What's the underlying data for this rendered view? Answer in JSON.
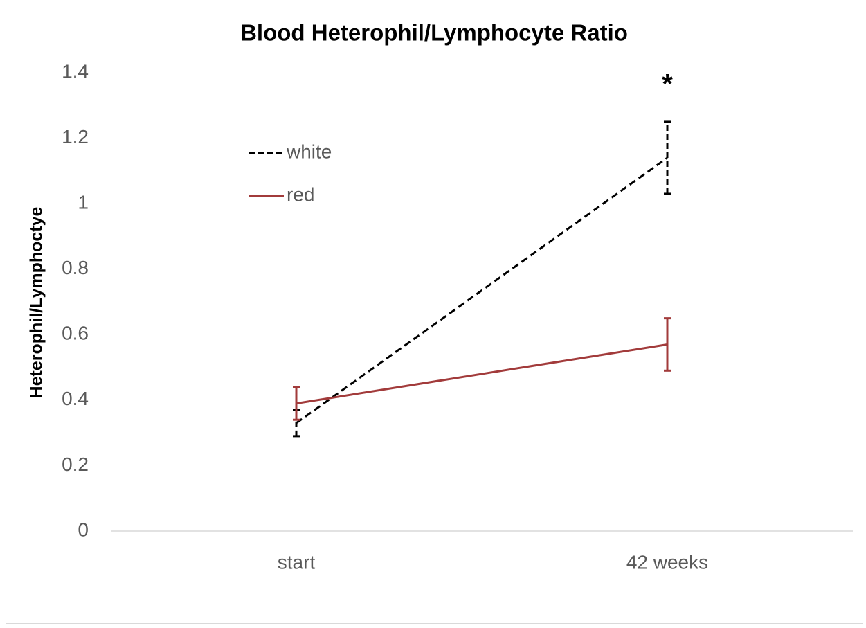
{
  "chart_data": {
    "type": "line",
    "title": "Blood Heterophil/Lymphocyte Ratio",
    "y_label": "Heterophil/Lymphoctye",
    "categories": [
      "start",
      "42 weeks"
    ],
    "series": [
      {
        "name": "white",
        "color": "#000000",
        "linestyle": "dashed",
        "values": [
          0.33,
          1.14
        ],
        "errors": [
          0.04,
          0.11
        ]
      },
      {
        "name": "red",
        "color": "#a23b3b",
        "linestyle": "solid",
        "values": [
          0.39,
          0.57
        ],
        "errors": [
          0.05,
          0.08
        ]
      }
    ],
    "annotations": [
      {
        "text": "*",
        "category": 1,
        "y": 1.36
      }
    ],
    "ylim": [
      0,
      1.4
    ],
    "yticks": [
      0,
      0.2,
      0.4,
      0.6,
      0.8,
      1,
      1.2,
      1.4
    ],
    "grid": false,
    "legend": "upper left"
  }
}
